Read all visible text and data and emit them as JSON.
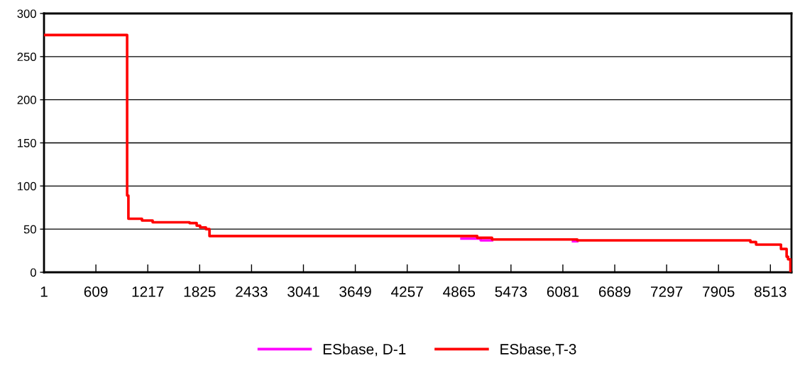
{
  "chart_data": {
    "type": "line",
    "xlim": [
      1,
      8760
    ],
    "xticks": [
      1,
      609,
      1217,
      1825,
      2433,
      3041,
      3649,
      4257,
      4865,
      5473,
      6081,
      6689,
      7297,
      7905,
      8513
    ],
    "ylim": [
      0,
      300
    ],
    "yticks": [
      0,
      50,
      100,
      150,
      200,
      250,
      300
    ],
    "grid": "y",
    "legend": "bottom",
    "marker": "none",
    "line_style": "solid",
    "series": [
      {
        "name": "ESbase, D-1",
        "color": "#ff00ff",
        "x": [
          4893,
          5118,
          5118,
          5251,
          5800,
          6200,
          6250
        ],
        "values": [
          39,
          39,
          37,
          37,
          null,
          36,
          36
        ]
      },
      {
        "name": "ESbase,T-3",
        "color": "#ff0000",
        "x": [
          1,
          975,
          975,
          990,
          990,
          1149,
          1149,
          1274,
          1274,
          1707,
          1707,
          1790,
          1790,
          1831,
          1831,
          1898,
          1898,
          1940,
          1940,
          5077,
          5077,
          5251,
          5251,
          6250,
          6250,
          8279,
          8279,
          8345,
          8345,
          8637,
          8637,
          8703,
          8703,
          8720,
          8720,
          8748,
          8748,
          8760
        ],
        "values": [
          275,
          275,
          89,
          89,
          62,
          62,
          60,
          60,
          58,
          58,
          57,
          57,
          54,
          54,
          52,
          52,
          50,
          50,
          42,
          42,
          40,
          40,
          38,
          38,
          37,
          37,
          35,
          35,
          32,
          32,
          27,
          27,
          18,
          18,
          15,
          15,
          0,
          0
        ]
      }
    ]
  }
}
